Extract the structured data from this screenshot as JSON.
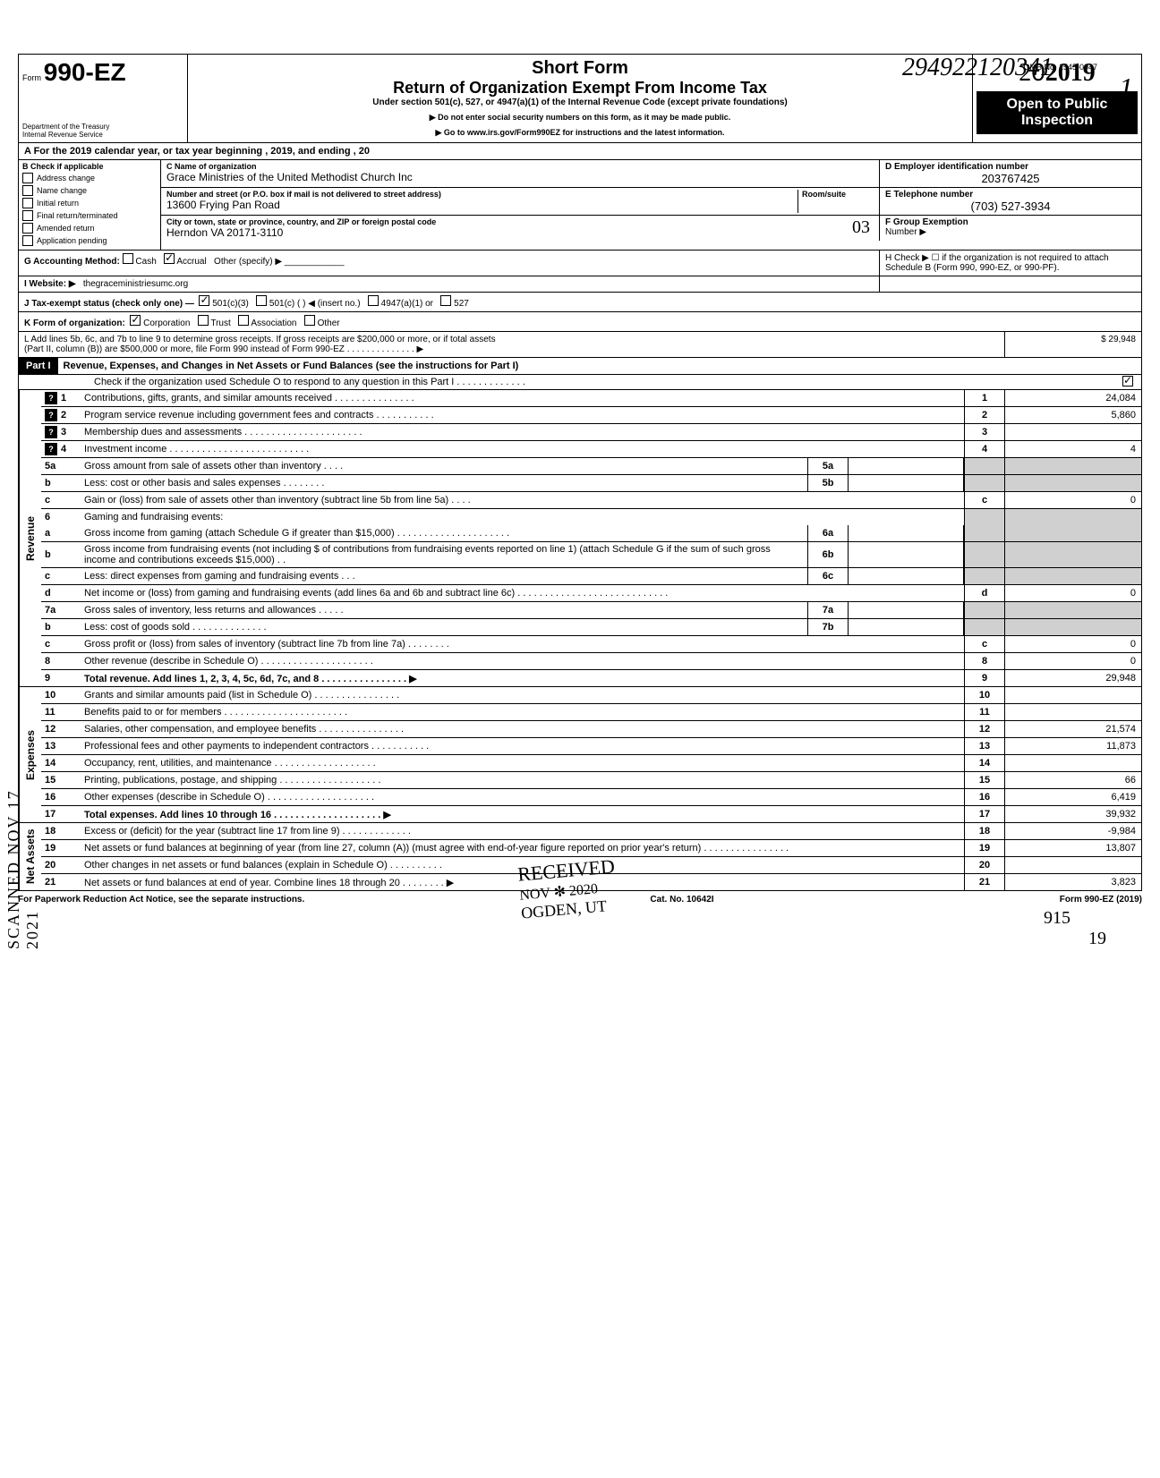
{
  "form": {
    "prefix": "Form",
    "number": "990-EZ",
    "dept1": "Department of the Treasury",
    "dept2": "Internal Revenue Service"
  },
  "title": {
    "short": "Short Form",
    "main": "Return of Organization Exempt From Income Tax",
    "under": "Under section 501(c), 527, or 4947(a)(1) of the Internal Revenue Code (except private foundations)",
    "warn": "▶ Do not enter social security numbers on this form, as it may be made public.",
    "goto": "▶ Go to www.irs.gov/Form990EZ for instructions and the latest information."
  },
  "stamp_num": "294922120341",
  "omb": "OMB No. 1545-0047",
  "page_num_top": "1",
  "year": "2019",
  "open_public1": "Open to Public",
  "open_public2": "Inspection",
  "rowA": "A  For the 2019 calendar year, or tax year beginning                                                                           , 2019, and ending                                                              , 20",
  "B": {
    "header": "B  Check if applicable",
    "opts": [
      "Address change",
      "Name change",
      "Initial return",
      "Final return/terminated",
      "Amended return",
      "Application pending"
    ]
  },
  "C": {
    "name_label": "C  Name of organization",
    "name": "Grace Ministries of the United Methodist Church Inc",
    "addr_label": "Number and street (or P.O. box if mail is not delivered to street address)",
    "room_label": "Room/suite",
    "addr": "13600 Frying Pan Road",
    "city_label": "City or town, state or province, country, and ZIP or foreign postal code",
    "city": "Herndon VA  20171-3110"
  },
  "D": {
    "label": "D Employer identification number",
    "value": "203767425"
  },
  "E": {
    "label": "E Telephone number",
    "value": "(703) 527-3934"
  },
  "F": {
    "label": "F Group Exemption",
    "label2": "Number ▶"
  },
  "hand03": "03",
  "G": "G  Accounting Method:",
  "G_opts": [
    "Cash",
    "Accrual",
    "Other (specify) ▶"
  ],
  "H": "H  Check ▶ ☐ if the organization is not required to attach Schedule B (Form 990, 990-EZ, or 990-PF).",
  "I": "I   Website: ▶",
  "I_val": "thegraceministriesumc.org",
  "J": "J  Tax-exempt status (check only one) —",
  "J_opts": [
    "501(c)(3)",
    "501(c) (          ) ◀ (insert no.)",
    "4947(a)(1) or",
    "527"
  ],
  "K": "K  Form of organization:",
  "K_opts": [
    "Corporation",
    "Trust",
    "Association",
    "Other"
  ],
  "L1": "L  Add lines 5b, 6c, and 7b to line 9 to determine gross receipts. If gross receipts are $200,000 or more, or if total assets",
  "L2": "(Part II, column (B)) are $500,000 or more, file Form 990 instead of Form 990-EZ .    .    .    .    .    .    .    .    .    .    .    .    .    .    ▶",
  "L_amt": "29,948",
  "part1": {
    "label": "Part I",
    "title": "Revenue, Expenses, and Changes in Net Assets or Fund Balances (see the instructions for Part I)",
    "check": "Check if the organization used Schedule O to respond to any question in this Part I  .    .    .    .    .    .    .    .    .    .    .    .    ."
  },
  "sides": {
    "rev": "Revenue",
    "exp": "Expenses",
    "net": "Net Assets"
  },
  "lines": {
    "1": {
      "text": "Contributions, gifts, grants, and similar amounts received .    .    .    .    .    .    .    .    .    .    .    .    .    .    .",
      "amt": "24,084"
    },
    "2": {
      "text": "Program service revenue including government fees and contracts     .    .    .    .    .    .    .    .    .    .    .",
      "amt": "5,860"
    },
    "3": {
      "text": "Membership dues and assessments .    .    .    .    .    .    .    .    .    .    .    .    .    .    .    .    .    .    .    .    .    .",
      "amt": ""
    },
    "4": {
      "text": "Investment income     .    .    .    .    .    .    .    .    .    .    .    .    .    .    .    .    .    .    .    .    .    .    .    .    .    .",
      "amt": "4"
    },
    "5a": {
      "text": "Gross amount from sale of assets other than inventory     .    .    .    ."
    },
    "5b": {
      "text": "Less: cost or other basis and sales expenses .    .    .    .    .    .    .    ."
    },
    "5c": {
      "text": "Gain or (loss) from sale of assets other than inventory (subtract line 5b from line 5a)  .    .    .    .",
      "amt": "0"
    },
    "6": {
      "text": "Gaming and fundraising events:"
    },
    "6a": {
      "text": "Gross income from gaming (attach Schedule G if greater than $15,000) .    .    .    .    .    .    .    .    .    .    .    .    .    .    .    .    .    .    .    .    ."
    },
    "6b": {
      "text": "Gross income from fundraising events (not including  $                               of contributions from fundraising events reported on line 1) (attach Schedule G if the sum of such gross income and contributions exceeds $15,000) .    ."
    },
    "6c": {
      "text": "Less: direct expenses from gaming and fundraising events    .    .    ."
    },
    "6d": {
      "text": "Net income or (loss) from gaming and fundraising events (add lines 6a and 6b and subtract line 6c)      .    .    .    .    .    .    .    .    .    .    .    .    .    .    .    .    .    .    .    .    .    .    .    .    .    .    .    .",
      "amt": "0"
    },
    "7a": {
      "text": "Gross sales of inventory, less returns and allowances  .    .    .    .    ."
    },
    "7b": {
      "text": "Less: cost of goods sold      .    .    .    .    .    .    .    .    .    .    .    .    .    ."
    },
    "7c": {
      "text": "Gross profit or (loss) from sales of inventory (subtract line 7b from line 7a) .    .    .    .    .    .    .    .",
      "amt": "0"
    },
    "8": {
      "text": "Other revenue (describe in Schedule O) .    .    .    .    .    .    .    .    .    .    .    .    .    .    .    .    .    .    .    .    .",
      "amt": "0"
    },
    "9": {
      "text": "Total revenue. Add lines 1, 2, 3, 4, 5c, 6d, 7c, and 8   .    .    .    .    .    .    .    .    .    .    .    .    .    .    .    . ▶",
      "amt": "29,948"
    },
    "10": {
      "text": "Grants and similar amounts paid (list in Schedule O)    .    .    .    .    .    .    .    .    .    .    .    .    .    .    .    .",
      "amt": ""
    },
    "11": {
      "text": "Benefits paid to or for members   .    .    .    .    .    .    .    .    .    .    .    .    .    .    .    .    .    .    .    .    .    .    .",
      "amt": ""
    },
    "12": {
      "text": "Salaries, other compensation, and employee benefits   .    .    .    .    .    .    .    .    .    .    .    .    .    .    .    .",
      "amt": "21,574"
    },
    "13": {
      "text": "Professional fees and other payments to independent contractors   .    .    .    .    .    .    .    .    .    .    .",
      "amt": "11,873"
    },
    "14": {
      "text": "Occupancy, rent, utilities, and maintenance      .    .    .    .    .    .    .    .    .    .    .    .    .    .    .    .    .    .    .",
      "amt": ""
    },
    "15": {
      "text": "Printing, publications, postage, and shipping .    .    .    .    .    .    .    .    .    .    .    .    .    .    .    .    .    .    .",
      "amt": "66"
    },
    "16": {
      "text": "Other expenses (describe in Schedule O)  .    .    .    .    .    .    .    .    .    .    .    .    .    .    .    .    .    .    .    .",
      "amt": "6,419"
    },
    "17": {
      "text": "Total expenses. Add lines 10 through 16  .    .    .    .    .    .    .    .    .    .    .    .    .    .    .    .    .    .    .    . ▶",
      "amt": "39,932"
    },
    "18": {
      "text": "Excess or (deficit) for the year (subtract line 17 from line 9)     .    .    .    .    .    .    .    .    .    .    .    .    .",
      "amt": "-9,984"
    },
    "19": {
      "text": "Net assets or fund balances at beginning of year (from line 27, column (A)) (must agree with end-of-year figure reported on prior year's return)     .    .    .    .    .    .    .    .    .    .    .    .    .    .    .    .",
      "amt": "13,807"
    },
    "20": {
      "text": "Other changes in net assets or fund balances (explain in Schedule O) .    .    .    .    .    .    .    .    .    .",
      "amt": ""
    },
    "21": {
      "text": "Net assets or fund balances at end of year. Combine lines 18 through 20    .    .    .    .    .    .    .    . ▶",
      "amt": "3,823"
    }
  },
  "footer": {
    "left": "For Paperwork Reduction Act Notice, see the separate instructions.",
    "mid": "Cat. No. 10642I",
    "right": "Form 990-EZ (2019)"
  },
  "scanned": "SCANNED NOV 17 2021",
  "received": {
    "l1": "RECEIVED",
    "l2": "NOV ✻ 2020",
    "l3": "OGDEN, UT"
  },
  "hand_915": "915",
  "hand_19": "19"
}
